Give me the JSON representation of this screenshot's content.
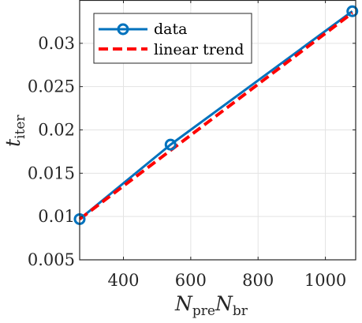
{
  "chart_data": {
    "type": "line",
    "title": "",
    "xlabel": {
      "main": "N",
      "sub1": "pre",
      "main2": "N",
      "sub2": "br"
    },
    "ylabel": {
      "main": "t",
      "sub": "iter"
    },
    "xlim": [
      270,
      1090
    ],
    "ylim": [
      0.005,
      0.035
    ],
    "xticks": [
      400,
      600,
      800,
      1000
    ],
    "xtick_labels": [
      "400",
      "600",
      "800",
      "1000"
    ],
    "yticks": [
      0.005,
      0.01,
      0.015,
      0.02,
      0.025,
      0.03
    ],
    "ytick_labels": [
      "0.005",
      "0.01",
      "0.015",
      "0.02",
      "0.025",
      "0.03"
    ],
    "grid": true,
    "legend_position": "top-left",
    "series": [
      {
        "name": "data",
        "style": "solid-circle-markers",
        "color": "#0072BD",
        "x": [
          270,
          540,
          1080
        ],
        "y": [
          0.0097,
          0.0183,
          0.0337
        ]
      },
      {
        "name": "linear trend",
        "style": "dashed",
        "color": "#FF0000",
        "x": [
          270,
          1080
        ],
        "y": [
          0.0097,
          0.0335
        ]
      }
    ]
  }
}
